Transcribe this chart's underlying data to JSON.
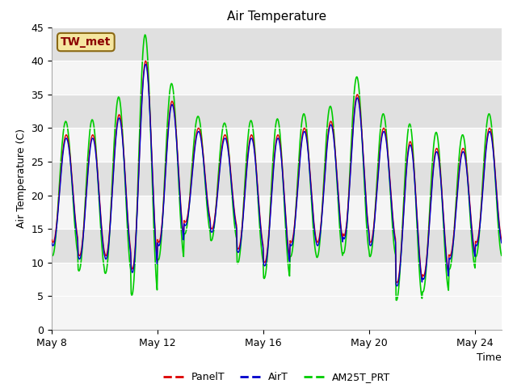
{
  "title": "Air Temperature",
  "xlabel": "Time",
  "ylabel": "Air Temperature (C)",
  "ylim": [
    0,
    45
  ],
  "yticks": [
    0,
    5,
    10,
    15,
    20,
    25,
    30,
    35,
    40,
    45
  ],
  "xlim_days": [
    0,
    17
  ],
  "x_tick_labels": [
    "May 8",
    "May 12",
    "May 16",
    "May 20",
    "May 24"
  ],
  "x_tick_positions": [
    0,
    4,
    8,
    12,
    16
  ],
  "annotation_text": "TW_met",
  "line_colors": {
    "PanelT": "#dd0000",
    "AirT": "#0000cc",
    "AM25T_PRT": "#00cc00"
  },
  "line_widths": {
    "PanelT": 1.0,
    "AirT": 1.0,
    "AM25T_PRT": 1.2
  },
  "background_color": "#ffffff",
  "plot_bg_color": "#f5f5f5",
  "band_color": "#e0e0e0",
  "band_ranges": [
    [
      10,
      15
    ],
    [
      20,
      25
    ],
    [
      30,
      35
    ],
    [
      40,
      45
    ]
  ],
  "title_fontsize": 11,
  "axis_label_fontsize": 9,
  "tick_fontsize": 9,
  "legend_fontsize": 9
}
